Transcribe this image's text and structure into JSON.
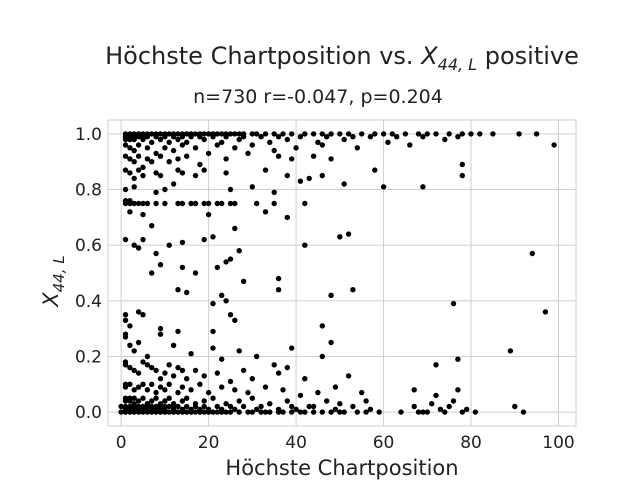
{
  "chart_data": {
    "type": "scatter",
    "title_prefix": "Höchste Chartposition vs. ",
    "title_math_main": "X",
    "title_math_sub": "44, L",
    "title_suffix": " positive",
    "subtitle": "n=730 r=-0.047, p=0.204",
    "xlabel": "Höchste Chartposition",
    "ylabel_main": "X",
    "ylabel_sub": "44, L",
    "xlim": [
      -3,
      104
    ],
    "ylim": [
      -0.05,
      1.05
    ],
    "xticks": [
      0,
      20,
      40,
      60,
      80,
      100
    ],
    "yticks": [
      0.0,
      0.2,
      0.4,
      0.6,
      0.8,
      1.0
    ],
    "xtick_labels": [
      "0",
      "20",
      "40",
      "60",
      "80",
      "100"
    ],
    "ytick_labels": [
      "0.0",
      "0.2",
      "0.4",
      "0.6",
      "0.8",
      "1.0"
    ],
    "grid": true,
    "marker_color": "#000000",
    "points": [
      [
        1,
        1.0
      ],
      [
        2,
        1.0
      ],
      [
        3,
        1.0
      ],
      [
        4,
        1.0
      ],
      [
        5,
        1.0
      ],
      [
        6,
        1.0
      ],
      [
        7,
        1.0
      ],
      [
        8,
        1.0
      ],
      [
        9,
        1.0
      ],
      [
        10,
        1.0
      ],
      [
        11,
        1.0
      ],
      [
        12,
        1.0
      ],
      [
        13,
        1.0
      ],
      [
        14,
        1.0
      ],
      [
        15,
        1.0
      ],
      [
        16,
        1.0
      ],
      [
        17,
        1.0
      ],
      [
        18,
        1.0
      ],
      [
        19,
        1.0
      ],
      [
        20,
        1.0
      ],
      [
        21,
        1.0
      ],
      [
        22,
        1.0
      ],
      [
        23,
        1.0
      ],
      [
        24,
        1.0
      ],
      [
        25,
        1.0
      ],
      [
        26,
        1.0
      ],
      [
        27,
        1.0
      ],
      [
        28,
        1.0
      ],
      [
        30,
        1.0
      ],
      [
        31,
        1.0
      ],
      [
        33,
        1.0
      ],
      [
        35,
        1.0
      ],
      [
        37,
        1.0
      ],
      [
        39,
        1.0
      ],
      [
        42,
        1.0
      ],
      [
        44,
        1.0
      ],
      [
        46,
        1.0
      ],
      [
        48,
        1.0
      ],
      [
        50,
        1.0
      ],
      [
        52,
        1.0
      ],
      [
        55,
        1.0
      ],
      [
        58,
        1.0
      ],
      [
        60,
        1.0
      ],
      [
        62,
        1.0
      ],
      [
        65,
        1.0
      ],
      [
        68,
        1.0
      ],
      [
        70,
        1.0
      ],
      [
        72,
        1.0
      ],
      [
        75,
        1.0
      ],
      [
        78,
        1.0
      ],
      [
        80,
        1.0
      ],
      [
        82,
        1.0
      ],
      [
        85,
        1.0
      ],
      [
        91,
        1.0
      ],
      [
        95,
        1.0
      ],
      [
        1,
        0.99
      ],
      [
        2,
        0.99
      ],
      [
        3,
        0.99
      ],
      [
        4,
        0.99
      ],
      [
        5,
        0.99
      ],
      [
        6,
        0.99
      ],
      [
        8,
        0.99
      ],
      [
        10,
        0.99
      ],
      [
        12,
        0.99
      ],
      [
        14,
        0.99
      ],
      [
        16,
        0.99
      ],
      [
        18,
        0.99
      ],
      [
        21,
        0.99
      ],
      [
        24,
        0.99
      ],
      [
        28,
        0.99
      ],
      [
        32,
        0.99
      ],
      [
        36,
        0.99
      ],
      [
        41,
        0.99
      ],
      [
        47,
        0.99
      ],
      [
        53,
        0.99
      ],
      [
        57,
        0.99
      ],
      [
        63,
        0.99
      ],
      [
        69,
        0.99
      ],
      [
        77,
        0.99
      ],
      [
        1,
        0.98
      ],
      [
        2,
        0.98
      ],
      [
        3,
        0.98
      ],
      [
        5,
        0.98
      ],
      [
        7,
        0.97
      ],
      [
        9,
        0.98
      ],
      [
        11,
        0.97
      ],
      [
        13,
        0.98
      ],
      [
        15,
        0.97
      ],
      [
        19,
        0.98
      ],
      [
        23,
        0.97
      ],
      [
        27,
        0.98
      ],
      [
        34,
        0.97
      ],
      [
        38,
        0.98
      ],
      [
        45,
        0.97
      ],
      [
        51,
        0.98
      ],
      [
        61,
        0.97
      ],
      [
        74,
        0.98
      ],
      [
        99,
        0.96
      ],
      [
        1,
        0.96
      ],
      [
        2,
        0.95
      ],
      [
        3,
        0.94
      ],
      [
        4,
        0.96
      ],
      [
        6,
        0.95
      ],
      [
        8,
        0.93
      ],
      [
        10,
        0.95
      ],
      [
        12,
        0.94
      ],
      [
        14,
        0.96
      ],
      [
        17,
        0.95
      ],
      [
        20,
        0.93
      ],
      [
        22,
        0.96
      ],
      [
        26,
        0.95
      ],
      [
        30,
        0.96
      ],
      [
        35,
        0.94
      ],
      [
        40,
        0.95
      ],
      [
        46,
        0.96
      ],
      [
        54,
        0.95
      ],
      [
        66,
        0.96
      ],
      [
        1,
        0.92
      ],
      [
        2,
        0.91
      ],
      [
        3,
        0.9
      ],
      [
        4,
        0.92
      ],
      [
        5,
        0.88
      ],
      [
        6,
        0.91
      ],
      [
        7,
        0.9
      ],
      [
        9,
        0.92
      ],
      [
        11,
        0.9
      ],
      [
        13,
        0.91
      ],
      [
        15,
        0.92
      ],
      [
        18,
        0.89
      ],
      [
        24,
        0.91
      ],
      [
        29,
        0.93
      ],
      [
        36,
        0.92
      ],
      [
        39,
        0.91
      ],
      [
        44,
        0.92
      ],
      [
        48,
        0.91
      ],
      [
        58,
        0.87
      ],
      [
        78,
        0.89
      ],
      [
        1,
        0.87
      ],
      [
        2,
        0.86
      ],
      [
        3,
        0.84
      ],
      [
        4,
        0.87
      ],
      [
        5,
        0.85
      ],
      [
        8,
        0.86
      ],
      [
        9,
        0.85
      ],
      [
        13,
        0.87
      ],
      [
        14,
        0.86
      ],
      [
        17,
        0.85
      ],
      [
        19,
        0.87
      ],
      [
        24,
        0.86
      ],
      [
        33,
        0.87
      ],
      [
        38,
        0.85
      ],
      [
        43,
        0.84
      ],
      [
        51,
        0.82
      ],
      [
        60,
        0.81
      ],
      [
        69,
        0.81
      ],
      [
        78,
        0.85
      ],
      [
        1,
        0.8
      ],
      [
        3,
        0.81
      ],
      [
        8,
        0.79
      ],
      [
        10,
        0.8
      ],
      [
        12,
        0.82
      ],
      [
        25,
        0.8
      ],
      [
        30,
        0.81
      ],
      [
        35,
        0.79
      ],
      [
        41,
        0.83
      ],
      [
        46,
        0.85
      ],
      [
        1,
        0.75
      ],
      [
        1,
        0.76
      ],
      [
        2,
        0.75
      ],
      [
        2,
        0.76
      ],
      [
        3,
        0.75
      ],
      [
        4,
        0.75
      ],
      [
        5,
        0.75
      ],
      [
        6,
        0.75
      ],
      [
        8,
        0.75
      ],
      [
        10,
        0.75
      ],
      [
        13,
        0.75
      ],
      [
        14,
        0.75
      ],
      [
        16,
        0.75
      ],
      [
        17,
        0.75
      ],
      [
        19,
        0.75
      ],
      [
        20,
        0.75
      ],
      [
        22,
        0.75
      ],
      [
        23,
        0.75
      ],
      [
        25,
        0.75
      ],
      [
        26,
        0.75
      ],
      [
        31,
        0.75
      ],
      [
        35,
        0.75
      ],
      [
        42,
        0.75
      ],
      [
        2,
        0.72
      ],
      [
        5,
        0.71
      ],
      [
        7,
        0.67
      ],
      [
        20,
        0.71
      ],
      [
        26,
        0.66
      ],
      [
        33,
        0.72
      ],
      [
        38,
        0.7
      ],
      [
        1,
        0.62
      ],
      [
        3,
        0.6
      ],
      [
        4,
        0.59
      ],
      [
        5,
        0.62
      ],
      [
        8,
        0.57
      ],
      [
        11,
        0.6
      ],
      [
        14,
        0.61
      ],
      [
        19,
        0.62
      ],
      [
        21,
        0.63
      ],
      [
        25,
        0.55
      ],
      [
        27,
        0.58
      ],
      [
        42,
        0.6
      ],
      [
        50,
        0.63
      ],
      [
        52,
        0.64
      ],
      [
        7,
        0.5
      ],
      [
        9,
        0.53
      ],
      [
        14,
        0.52
      ],
      [
        17,
        0.5
      ],
      [
        22,
        0.52
      ],
      [
        24,
        0.54
      ],
      [
        94,
        0.57
      ],
      [
        13,
        0.44
      ],
      [
        15,
        0.43
      ],
      [
        21,
        0.39
      ],
      [
        23,
        0.42
      ],
      [
        24,
        0.4
      ],
      [
        28,
        0.47
      ],
      [
        36,
        0.44
      ],
      [
        36,
        0.48
      ],
      [
        48,
        0.42
      ],
      [
        53,
        0.44
      ],
      [
        76,
        0.39
      ],
      [
        1,
        0.33
      ],
      [
        1,
        0.35
      ],
      [
        2,
        0.31
      ],
      [
        4,
        0.36
      ],
      [
        5,
        0.35
      ],
      [
        9,
        0.3
      ],
      [
        13,
        0.29
      ],
      [
        21,
        0.29
      ],
      [
        25,
        0.35
      ],
      [
        26,
        0.33
      ],
      [
        46,
        0.31
      ],
      [
        48,
        0.25
      ],
      [
        97,
        0.36
      ],
      [
        1,
        0.27
      ],
      [
        1,
        0.28
      ],
      [
        2,
        0.24
      ],
      [
        3,
        0.22
      ],
      [
        4,
        0.25
      ],
      [
        6,
        0.2
      ],
      [
        9,
        0.28
      ],
      [
        12,
        0.24
      ],
      [
        16,
        0.21
      ],
      [
        21,
        0.23
      ],
      [
        23,
        0.19
      ],
      [
        27,
        0.22
      ],
      [
        31,
        0.2
      ],
      [
        35,
        0.17
      ],
      [
        39,
        0.23
      ],
      [
        46,
        0.2
      ],
      [
        89,
        0.22
      ],
      [
        1,
        0.18
      ],
      [
        1,
        0.17
      ],
      [
        2,
        0.16
      ],
      [
        3,
        0.15
      ],
      [
        4,
        0.14
      ],
      [
        5,
        0.18
      ],
      [
        6,
        0.17
      ],
      [
        7,
        0.16
      ],
      [
        8,
        0.15
      ],
      [
        9,
        0.12
      ],
      [
        10,
        0.14
      ],
      [
        11,
        0.17
      ],
      [
        12,
        0.13
      ],
      [
        13,
        0.16
      ],
      [
        14,
        0.15
      ],
      [
        15,
        0.12
      ],
      [
        17,
        0.15
      ],
      [
        19,
        0.13
      ],
      [
        22,
        0.14
      ],
      [
        25,
        0.11
      ],
      [
        28,
        0.15
      ],
      [
        30,
        0.12
      ],
      [
        36,
        0.14
      ],
      [
        38,
        0.16
      ],
      [
        42,
        0.12
      ],
      [
        52,
        0.13
      ],
      [
        72,
        0.17
      ],
      [
        77,
        0.19
      ],
      [
        1,
        0.1
      ],
      [
        1,
        0.09
      ],
      [
        2,
        0.1
      ],
      [
        3,
        0.08
      ],
      [
        4,
        0.09
      ],
      [
        5,
        0.1
      ],
      [
        6,
        0.08
      ],
      [
        7,
        0.1
      ],
      [
        8,
        0.07
      ],
      [
        9,
        0.09
      ],
      [
        10,
        0.08
      ],
      [
        11,
        0.1
      ],
      [
        13,
        0.07
      ],
      [
        14,
        0.09
      ],
      [
        16,
        0.08
      ],
      [
        18,
        0.1
      ],
      [
        20,
        0.07
      ],
      [
        23,
        0.09
      ],
      [
        26,
        0.08
      ],
      [
        29,
        0.07
      ],
      [
        33,
        0.09
      ],
      [
        37,
        0.08
      ],
      [
        41,
        0.06
      ],
      [
        45,
        0.07
      ],
      [
        49,
        0.09
      ],
      [
        55,
        0.07
      ],
      [
        67,
        0.08
      ],
      [
        72,
        0.06
      ],
      [
        77,
        0.08
      ],
      [
        1,
        0.05
      ],
      [
        1,
        0.04
      ],
      [
        2,
        0.05
      ],
      [
        2,
        0.04
      ],
      [
        3,
        0.05
      ],
      [
        3,
        0.03
      ],
      [
        4,
        0.04
      ],
      [
        5,
        0.05
      ],
      [
        6,
        0.03
      ],
      [
        7,
        0.04
      ],
      [
        8,
        0.05
      ],
      [
        9,
        0.03
      ],
      [
        10,
        0.04
      ],
      [
        11,
        0.05
      ],
      [
        12,
        0.03
      ],
      [
        14,
        0.04
      ],
      [
        15,
        0.05
      ],
      [
        17,
        0.03
      ],
      [
        19,
        0.04
      ],
      [
        21,
        0.05
      ],
      [
        24,
        0.03
      ],
      [
        27,
        0.04
      ],
      [
        30,
        0.05
      ],
      [
        34,
        0.03
      ],
      [
        38,
        0.04
      ],
      [
        43,
        0.02
      ],
      [
        47,
        0.04
      ],
      [
        50,
        0.03
      ],
      [
        56,
        0.04
      ],
      [
        71,
        0.03
      ],
      [
        76,
        0.04
      ],
      [
        0,
        0.02
      ],
      [
        1,
        0.02
      ],
      [
        1,
        0.01
      ],
      [
        2,
        0.02
      ],
      [
        2,
        0.01
      ],
      [
        3,
        0.02
      ],
      [
        3,
        0.01
      ],
      [
        4,
        0.02
      ],
      [
        4,
        0.01
      ],
      [
        5,
        0.02
      ],
      [
        5,
        0.01
      ],
      [
        6,
        0.02
      ],
      [
        6,
        0.01
      ],
      [
        7,
        0.02
      ],
      [
        7,
        0.01
      ],
      [
        8,
        0.02
      ],
      [
        8,
        0.01
      ],
      [
        9,
        0.02
      ],
      [
        9,
        0.01
      ],
      [
        10,
        0.02
      ],
      [
        10,
        0.01
      ],
      [
        11,
        0.02
      ],
      [
        12,
        0.02
      ],
      [
        12,
        0.01
      ],
      [
        13,
        0.02
      ],
      [
        14,
        0.01
      ],
      [
        15,
        0.02
      ],
      [
        16,
        0.01
      ],
      [
        17,
        0.02
      ],
      [
        18,
        0.01
      ],
      [
        19,
        0.02
      ],
      [
        20,
        0.01
      ],
      [
        22,
        0.02
      ],
      [
        23,
        0.01
      ],
      [
        25,
        0.02
      ],
      [
        26,
        0.01
      ],
      [
        28,
        0.02
      ],
      [
        31,
        0.01
      ],
      [
        32,
        0.02
      ],
      [
        36,
        0.01
      ],
      [
        39,
        0.02
      ],
      [
        40,
        0.01
      ],
      [
        44,
        0.02
      ],
      [
        49,
        0.01
      ],
      [
        53,
        0.02
      ],
      [
        57,
        0.01
      ],
      [
        67,
        0.02
      ],
      [
        73,
        0.01
      ],
      [
        75,
        0.02
      ],
      [
        79,
        0.01
      ],
      [
        90,
        0.02
      ],
      [
        0,
        0.0
      ],
      [
        1,
        0.0
      ],
      [
        2,
        0.0
      ],
      [
        3,
        0.0
      ],
      [
        4,
        0.0
      ],
      [
        5,
        0.0
      ],
      [
        6,
        0.0
      ],
      [
        7,
        0.0
      ],
      [
        8,
        0.0
      ],
      [
        9,
        0.0
      ],
      [
        10,
        0.0
      ],
      [
        11,
        0.0
      ],
      [
        12,
        0.0
      ],
      [
        13,
        0.0
      ],
      [
        14,
        0.0
      ],
      [
        15,
        0.0
      ],
      [
        16,
        0.0
      ],
      [
        17,
        0.0
      ],
      [
        18,
        0.0
      ],
      [
        19,
        0.0
      ],
      [
        20,
        0.0
      ],
      [
        21,
        0.0
      ],
      [
        22,
        0.0
      ],
      [
        23,
        0.0
      ],
      [
        24,
        0.0
      ],
      [
        25,
        0.0
      ],
      [
        27,
        0.0
      ],
      [
        29,
        0.0
      ],
      [
        30,
        0.0
      ],
      [
        32,
        0.0
      ],
      [
        33,
        0.0
      ],
      [
        34,
        0.0
      ],
      [
        36,
        0.0
      ],
      [
        37,
        0.0
      ],
      [
        39,
        0.0
      ],
      [
        41,
        0.0
      ],
      [
        42,
        0.0
      ],
      [
        44,
        0.0
      ],
      [
        46,
        0.0
      ],
      [
        48,
        0.0
      ],
      [
        50,
        0.0
      ],
      [
        51,
        0.0
      ],
      [
        54,
        0.0
      ],
      [
        56,
        0.0
      ],
      [
        59,
        0.0
      ],
      [
        64,
        0.0
      ],
      [
        68,
        0.0
      ],
      [
        69,
        0.0
      ],
      [
        70,
        0.0
      ],
      [
        74,
        0.0
      ],
      [
        78,
        0.0
      ],
      [
        81,
        0.0
      ],
      [
        92,
        0.0
      ]
    ]
  }
}
